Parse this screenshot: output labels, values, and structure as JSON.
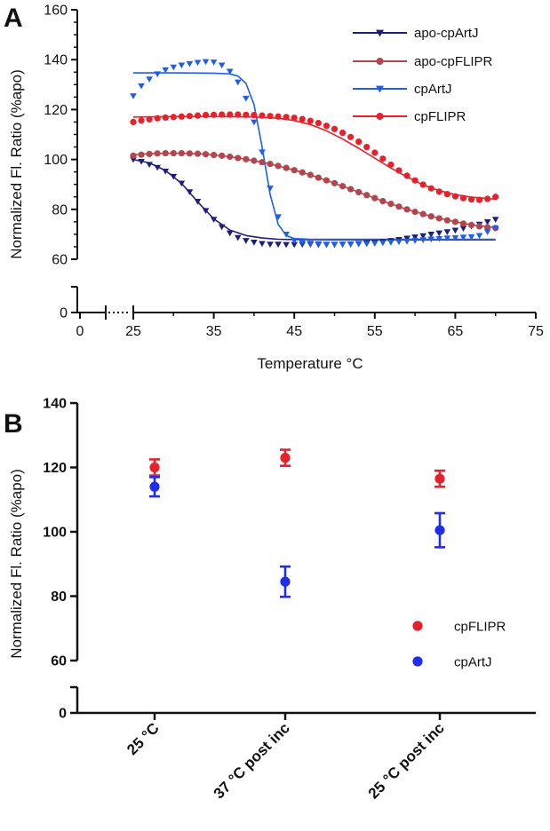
{
  "figure": {
    "panels": [
      {
        "letter": "A"
      },
      {
        "letter": "B"
      }
    ]
  },
  "chart_data": [
    {
      "type": "scatter",
      "panel": "A",
      "xlabel": "Temperature °C",
      "ylabel": "Normalized Fl. Ratio (%apo)",
      "xlim": [
        25,
        75
      ],
      "x_axis_break": {
        "lower": 0,
        "upper": 25
      },
      "xticks": [
        0,
        25,
        35,
        45,
        55,
        65,
        75
      ],
      "ylim": [
        60,
        160
      ],
      "y_axis_break": {
        "lower": 0,
        "upper": 60
      },
      "yticks": [
        0,
        60,
        80,
        100,
        120,
        140,
        160
      ],
      "grid": false,
      "legend_position": "top-right",
      "series": [
        {
          "name": "apo-cpArtJ",
          "color": "#1c1f78",
          "marker": "triangle-down",
          "points": [
            [
              25,
              100
            ],
            [
              26,
              99.2
            ],
            [
              27,
              98
            ],
            [
              28,
              96.8
            ],
            [
              29,
              95.3
            ],
            [
              30,
              93.2
            ],
            [
              31,
              90.5
            ],
            [
              32,
              87
            ],
            [
              33,
              83.2
            ],
            [
              34,
              79.5
            ],
            [
              35,
              76
            ],
            [
              36,
              73
            ],
            [
              37,
              70.5
            ],
            [
              38,
              68.7
            ],
            [
              39,
              67.5
            ],
            [
              40,
              66.8
            ],
            [
              41,
              66.3
            ],
            [
              42,
              66
            ],
            [
              43,
              66
            ],
            [
              44,
              65.9
            ],
            [
              45,
              65.9
            ],
            [
              46,
              66
            ],
            [
              47,
              66
            ],
            [
              48,
              65.9
            ],
            [
              49,
              65.9
            ],
            [
              50,
              65.9
            ],
            [
              51,
              66
            ],
            [
              52,
              66.1
            ],
            [
              53,
              66.3
            ],
            [
              54,
              66.5
            ],
            [
              55,
              66.8
            ],
            [
              56,
              67.1
            ],
            [
              57,
              67.5
            ],
            [
              58,
              67.9
            ],
            [
              59,
              68.4
            ],
            [
              60,
              68.9
            ],
            [
              61,
              69.4
            ],
            [
              62,
              70
            ],
            [
              63,
              70.5
            ],
            [
              64,
              71
            ],
            [
              65,
              71.6
            ],
            [
              66,
              72.4
            ],
            [
              67,
              73.3
            ],
            [
              68,
              74
            ],
            [
              69,
              75
            ],
            [
              70,
              76
            ]
          ],
          "fit": [
            [
              25,
              100
            ],
            [
              27,
              98.6
            ],
            [
              29,
              95.6
            ],
            [
              31,
              90.4
            ],
            [
              33,
              83
            ],
            [
              35,
              76.2
            ],
            [
              37,
              71.7
            ],
            [
              39,
              69.5
            ],
            [
              41,
              68.5
            ],
            [
              43,
              68
            ],
            [
              45,
              67.9
            ],
            [
              50,
              67.8
            ],
            [
              55,
              67.8
            ],
            [
              60,
              67.8
            ],
            [
              65,
              67.8
            ],
            [
              70,
              67.8
            ]
          ]
        },
        {
          "name": "apo-cpFLIPR",
          "color": "#b4454d",
          "marker": "circle",
          "points": [
            [
              25,
              101.5
            ],
            [
              26,
              101.9
            ],
            [
              27,
              102.2
            ],
            [
              28,
              102.4
            ],
            [
              29,
              102.5
            ],
            [
              30,
              102.5
            ],
            [
              31,
              102.5
            ],
            [
              32,
              102.4
            ],
            [
              33,
              102.3
            ],
            [
              34,
              102.1
            ],
            [
              35,
              101.8
            ],
            [
              36,
              101.5
            ],
            [
              37,
              101.1
            ],
            [
              38,
              100.6
            ],
            [
              39,
              100.1
            ],
            [
              40,
              99.5
            ],
            [
              41,
              98.9
            ],
            [
              42,
              98.2
            ],
            [
              43,
              97.4
            ],
            [
              44,
              96.6
            ],
            [
              45,
              95.7
            ],
            [
              46,
              94.8
            ],
            [
              47,
              93.8
            ],
            [
              48,
              92.7
            ],
            [
              49,
              91.6
            ],
            [
              50,
              90.5
            ],
            [
              51,
              89.3
            ],
            [
              52,
              88.1
            ],
            [
              53,
              86.9
            ],
            [
              54,
              85.7
            ],
            [
              55,
              84.5
            ],
            [
              56,
              83.3
            ],
            [
              57,
              82.2
            ],
            [
              58,
              81.1
            ],
            [
              59,
              80
            ],
            [
              60,
              79
            ],
            [
              61,
              78.1
            ],
            [
              62,
              77.2
            ],
            [
              63,
              76.4
            ],
            [
              64,
              75.6
            ],
            [
              65,
              75
            ],
            [
              66,
              74.3
            ],
            [
              67,
              73.7
            ],
            [
              68,
              73.2
            ],
            [
              69,
              72.8
            ],
            [
              70,
              72.5
            ]
          ],
          "fit": [
            [
              25,
              101.9
            ],
            [
              27,
              102.3
            ],
            [
              29,
              102.5
            ],
            [
              31,
              102.5
            ],
            [
              33,
              102.3
            ],
            [
              35,
              101.8
            ],
            [
              37,
              101.1
            ],
            [
              39,
              100.1
            ],
            [
              41,
              98.9
            ],
            [
              43,
              97.4
            ],
            [
              45,
              95.7
            ],
            [
              47,
              93.8
            ],
            [
              49,
              91.6
            ],
            [
              51,
              89.3
            ],
            [
              53,
              86.9
            ],
            [
              55,
              84.5
            ],
            [
              57,
              82.2
            ],
            [
              59,
              80
            ],
            [
              61,
              78.1
            ],
            [
              63,
              76.4
            ],
            [
              65,
              75
            ],
            [
              67,
              73.8
            ],
            [
              70,
              72.6
            ]
          ]
        },
        {
          "name": "cpArtJ",
          "color": "#1e5ee8",
          "marker": "triangle-down",
          "points": [
            [
              25,
              125.5
            ],
            [
              26,
              129.5
            ],
            [
              27,
              132.2
            ],
            [
              28,
              134.3
            ],
            [
              29,
              135.9
            ],
            [
              30,
              137
            ],
            [
              31,
              137.8
            ],
            [
              32,
              138.4
            ],
            [
              33,
              138.9
            ],
            [
              34,
              139.2
            ],
            [
              35,
              139
            ],
            [
              36,
              137.8
            ],
            [
              37,
              135.3
            ],
            [
              38,
              131
            ],
            [
              39,
              124.5
            ],
            [
              40,
              115
            ],
            [
              41,
              103
            ],
            [
              42,
              88.5
            ],
            [
              43,
              77
            ],
            [
              44,
              70
            ],
            [
              45,
              67.5
            ],
            [
              46,
              66.8
            ],
            [
              47,
              66.4
            ],
            [
              48,
              66.2
            ],
            [
              49,
              66
            ],
            [
              50,
              66
            ],
            [
              51,
              66
            ],
            [
              52,
              66
            ],
            [
              53,
              66.1
            ],
            [
              54,
              66.2
            ],
            [
              55,
              66.4
            ],
            [
              56,
              66.6
            ],
            [
              57,
              66.8
            ],
            [
              58,
              67
            ],
            [
              59,
              67.2
            ],
            [
              60,
              67.5
            ],
            [
              61,
              67.8
            ],
            [
              62,
              68.1
            ],
            [
              63,
              68.3
            ],
            [
              64,
              68.5
            ],
            [
              65,
              68.6
            ],
            [
              66,
              68.8
            ],
            [
              67,
              69
            ],
            [
              68,
              69.5
            ],
            [
              69,
              71
            ],
            [
              70,
              72.5
            ]
          ],
          "fit": [
            [
              25,
              134.7
            ],
            [
              30,
              134.7
            ],
            [
              35,
              134.6
            ],
            [
              37,
              134.3
            ],
            [
              38,
              133.4
            ],
            [
              39,
              130.5
            ],
            [
              40,
              122
            ],
            [
              41,
              105
            ],
            [
              42,
              86
            ],
            [
              43,
              74
            ],
            [
              44,
              69.5
            ],
            [
              45,
              68.3
            ],
            [
              47,
              68
            ],
            [
              50,
              68
            ],
            [
              55,
              68
            ],
            [
              60,
              68
            ],
            [
              65,
              68
            ],
            [
              70,
              68
            ]
          ]
        },
        {
          "name": "cpFLIPR",
          "color": "#e8202a",
          "marker": "circle",
          "points": [
            [
              25,
              115
            ],
            [
              26,
              115.6
            ],
            [
              27,
              116.1
            ],
            [
              28,
              116.5
            ],
            [
              29,
              116.8
            ],
            [
              30,
              117
            ],
            [
              31,
              117.2
            ],
            [
              32,
              117.4
            ],
            [
              33,
              117.6
            ],
            [
              34,
              117.8
            ],
            [
              35,
              117.9
            ],
            [
              36,
              118
            ],
            [
              37,
              118
            ],
            [
              38,
              118
            ],
            [
              39,
              117.9
            ],
            [
              40,
              117.8
            ],
            [
              41,
              117.6
            ],
            [
              42,
              117.4
            ],
            [
              43,
              117.2
            ],
            [
              44,
              117
            ],
            [
              45,
              116.7
            ],
            [
              46,
              116.2
            ],
            [
              47,
              115.5
            ],
            [
              48,
              114.6
            ],
            [
              49,
              113.5
            ],
            [
              50,
              112.2
            ],
            [
              51,
              110.7
            ],
            [
              52,
              109
            ],
            [
              53,
              107.1
            ],
            [
              54,
              105
            ],
            [
              55,
              102.7
            ],
            [
              56,
              100.3
            ],
            [
              57,
              97.9
            ],
            [
              58,
              95.6
            ],
            [
              59,
              93.5
            ],
            [
              60,
              91.6
            ],
            [
              61,
              89.9
            ],
            [
              62,
              88.4
            ],
            [
              63,
              87.1
            ],
            [
              64,
              86.1
            ],
            [
              65,
              85.2
            ],
            [
              66,
              84.5
            ],
            [
              67,
              84
            ],
            [
              68,
              83.8
            ],
            [
              69,
              84.2
            ],
            [
              70,
              85
            ]
          ],
          "fit": [
            [
              25,
              117
            ],
            [
              30,
              117.2
            ],
            [
              35,
              117.2
            ],
            [
              40,
              117
            ],
            [
              43,
              116.5
            ],
            [
              45,
              115.6
            ],
            [
              47,
              114
            ],
            [
              49,
              111.5
            ],
            [
              51,
              108.2
            ],
            [
              53,
              104.5
            ],
            [
              55,
              100.5
            ],
            [
              57,
              96.6
            ],
            [
              59,
              93
            ],
            [
              61,
              89.8
            ],
            [
              63,
              87.5
            ],
            [
              65,
              85.9
            ],
            [
              67,
              84.9
            ],
            [
              70,
              84.1
            ]
          ]
        }
      ]
    },
    {
      "type": "scatter",
      "panel": "B",
      "xlabel": "",
      "ylabel": "Normalized Fl. Ratio (%apo)",
      "categories": [
        "25 °C",
        "37 °C post inc",
        "25 °C post inc"
      ],
      "ylim": [
        60,
        140
      ],
      "y_axis_break": {
        "lower": 0,
        "upper": 60
      },
      "yticks": [
        0,
        60,
        80,
        100,
        120,
        140
      ],
      "grid": false,
      "legend_position": "bottom-right",
      "series": [
        {
          "name": "cpFLIPR",
          "color": "#e8202a",
          "marker": "circle",
          "values": [
            120,
            123,
            116.5
          ],
          "error": [
            2.5,
            2.5,
            2.5
          ]
        },
        {
          "name": "cpArtJ",
          "color": "#1f2ee8",
          "marker": "circle",
          "values": [
            114,
            84.5,
            100.5
          ],
          "error": [
            3,
            4.7,
            5.3
          ]
        }
      ]
    }
  ]
}
